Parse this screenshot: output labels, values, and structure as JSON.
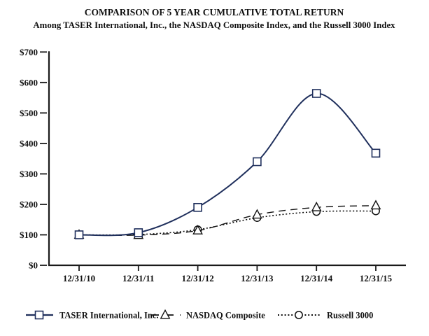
{
  "title": "COMPARISON OF 5 YEAR CUMULATIVE TOTAL RETURN",
  "subtitle": "Among TASER International, Inc., the NASDAQ Composite Index, and the Russell 3000 Index",
  "colors": {
    "taser_line": "#1f2f5c",
    "index_line": "#111111",
    "axis": "#1a1a1a",
    "background": "#ffffff",
    "marker_fill": "#ffffff"
  },
  "chart_data": {
    "type": "line",
    "title": "COMPARISON OF 5 YEAR CUMULATIVE TOTAL RETURN",
    "subtitle": "Among TASER International, Inc., the NASDAQ Composite Index, and the Russell 3000 Index",
    "categories": [
      "12/31/10",
      "12/31/11",
      "12/31/12",
      "12/31/13",
      "12/31/14",
      "12/31/15"
    ],
    "y_tick_labels": [
      "$0",
      "$100",
      "$200",
      "$300",
      "$400",
      "$500",
      "$600",
      "$700"
    ],
    "ylim": [
      0,
      700
    ],
    "y_tick_step": 100,
    "xlabel": "",
    "ylabel": "",
    "grid": false,
    "legend_position": "bottom",
    "series": [
      {
        "name": "TASER International, Inc.",
        "marker": "square",
        "line_style": "solid",
        "color": "#1f2f5c",
        "values": [
          100,
          107,
          190,
          340,
          564,
          368
        ]
      },
      {
        "name": "NASDAQ Composite",
        "marker": "triangle",
        "line_style": "dashed",
        "color": "#111111",
        "values": [
          100,
          99,
          114,
          166,
          190,
          196
        ]
      },
      {
        "name": "Russell 3000",
        "marker": "circle",
        "line_style": "dotted",
        "color": "#111111",
        "values": [
          100,
          101,
          117,
          156,
          176,
          178
        ]
      }
    ]
  }
}
